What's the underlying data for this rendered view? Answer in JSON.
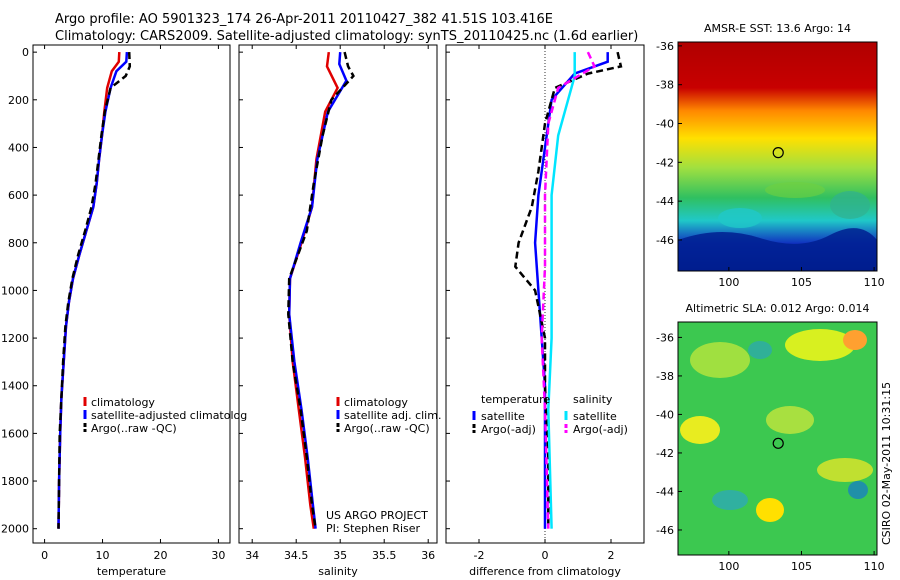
{
  "title": {
    "line1": "Argo profile: AO 5901323_174 26-Apr-2011 20110427_382 41.51S 103.416E",
    "line2": "Climatology: CARS2009. Satellite-adjusted climatology: synTS_20110425.nc (1.6d earlier)"
  },
  "side_stamp": "CSIRO 02-May-2011 10:31:15",
  "project": {
    "line1": "US ARGO PROJECT",
    "line2": "PI: Stephen Riser"
  },
  "colors": {
    "climatology": "#e00000",
    "satellite": "#0000ff",
    "argo": "#000000",
    "cyan": "#00e5ff",
    "magenta": "#ff00ff"
  },
  "chart_data": [
    {
      "type": "line",
      "xlabel": "temperature",
      "ylabel": "",
      "xlim": [
        -2,
        32
      ],
      "ylim": [
        2060,
        -30
      ],
      "xticks": [
        0,
        10,
        20,
        30
      ],
      "yticks": [
        0,
        200,
        400,
        600,
        800,
        1000,
        1200,
        1400,
        1600,
        1800,
        2000
      ],
      "legend": [
        "climatology",
        "satellite-adjusted climatolog",
        "Argo(..raw -QC)"
      ],
      "series": [
        {
          "name": "climatology",
          "color": "#e00000",
          "style": "solid",
          "points": [
            [
              12.9,
              0
            ],
            [
              12.8,
              40
            ],
            [
              11.6,
              80
            ],
            [
              10.8,
              150
            ],
            [
              10.3,
              250
            ],
            [
              9.9,
              350
            ],
            [
              9.4,
              450
            ],
            [
              9.0,
              550
            ],
            [
              8.4,
              650
            ],
            [
              7.2,
              750
            ],
            [
              6.0,
              850
            ],
            [
              4.9,
              950
            ],
            [
              4.2,
              1050
            ],
            [
              3.7,
              1150
            ],
            [
              3.3,
              1300
            ],
            [
              2.9,
              1450
            ],
            [
              2.7,
              1600
            ],
            [
              2.5,
              1800
            ],
            [
              2.4,
              2000
            ]
          ]
        },
        {
          "name": "satellite-adjusted climatolog",
          "color": "#0000ff",
          "style": "solid",
          "points": [
            [
              14.2,
              0
            ],
            [
              14.1,
              40
            ],
            [
              12.4,
              80
            ],
            [
              11.4,
              150
            ],
            [
              10.5,
              250
            ],
            [
              9.9,
              350
            ],
            [
              9.4,
              450
            ],
            [
              9.0,
              550
            ],
            [
              8.4,
              650
            ],
            [
              7.2,
              750
            ],
            [
              6.0,
              850
            ],
            [
              4.9,
              950
            ],
            [
              4.2,
              1050
            ],
            [
              3.7,
              1150
            ],
            [
              3.3,
              1300
            ],
            [
              2.9,
              1450
            ],
            [
              2.7,
              1600
            ],
            [
              2.5,
              1800
            ],
            [
              2.4,
              2000
            ]
          ]
        },
        {
          "name": "Argo(..raw -QC)",
          "color": "#000000",
          "style": "dashed",
          "points": [
            [
              14.6,
              0
            ],
            [
              14.7,
              60
            ],
            [
              14.0,
              100
            ],
            [
              11.4,
              150
            ],
            [
              10.4,
              250
            ],
            [
              9.8,
              350
            ],
            [
              9.3,
              450
            ],
            [
              8.8,
              550
            ],
            [
              8.1,
              650
            ],
            [
              7.0,
              750
            ],
            [
              5.8,
              850
            ],
            [
              4.8,
              950
            ],
            [
              4.1,
              1050
            ],
            [
              3.6,
              1150
            ],
            [
              3.2,
              1300
            ],
            [
              2.9,
              1450
            ],
            [
              2.6,
              1600
            ],
            [
              2.5,
              1800
            ],
            [
              2.4,
              2000
            ]
          ]
        }
      ]
    },
    {
      "type": "line",
      "xlabel": "salinity",
      "xlim": [
        33.85,
        36.1
      ],
      "ylim": [
        2060,
        -30
      ],
      "xticks": [
        34,
        34.5,
        35,
        35.5,
        36
      ],
      "legend": [
        "climatology",
        "satellite adj. clim.",
        "Argo(..raw -QC)"
      ],
      "series": [
        {
          "name": "climatology",
          "color": "#e00000",
          "style": "solid",
          "points": [
            [
              34.87,
              0
            ],
            [
              34.85,
              60
            ],
            [
              34.97,
              150
            ],
            [
              34.83,
              250
            ],
            [
              34.73,
              450
            ],
            [
              34.68,
              650
            ],
            [
              34.56,
              800
            ],
            [
              34.43,
              950
            ],
            [
              34.42,
              1100
            ],
            [
              34.46,
              1300
            ],
            [
              34.53,
              1500
            ],
            [
              34.6,
              1700
            ],
            [
              34.66,
              1900
            ],
            [
              34.7,
              2000
            ]
          ]
        },
        {
          "name": "satellite adj. clim.",
          "color": "#0000ff",
          "style": "solid",
          "points": [
            [
              35.0,
              0
            ],
            [
              34.99,
              50
            ],
            [
              35.07,
              120
            ],
            [
              34.86,
              250
            ],
            [
              34.74,
              450
            ],
            [
              34.68,
              650
            ],
            [
              34.55,
              800
            ],
            [
              34.43,
              950
            ],
            [
              34.42,
              1100
            ],
            [
              34.48,
              1300
            ],
            [
              34.56,
              1500
            ],
            [
              34.63,
              1700
            ],
            [
              34.69,
              1900
            ],
            [
              34.72,
              2000
            ]
          ]
        },
        {
          "name": "Argo(..raw -QC)",
          "color": "#000000",
          "style": "dashed",
          "points": [
            [
              35.05,
              0
            ],
            [
              35.09,
              60
            ],
            [
              35.15,
              100
            ],
            [
              34.9,
              200
            ],
            [
              34.8,
              350
            ],
            [
              34.7,
              550
            ],
            [
              34.62,
              750
            ],
            [
              34.52,
              850
            ],
            [
              34.42,
              950
            ],
            [
              34.41,
              1100
            ],
            [
              34.46,
              1300
            ],
            [
              34.55,
              1500
            ],
            [
              34.62,
              1700
            ],
            [
              34.68,
              1900
            ],
            [
              34.72,
              2000
            ]
          ]
        }
      ]
    },
    {
      "type": "line",
      "xlabel": "difference from climatology",
      "xlim": [
        -3,
        3
      ],
      "ylim": [
        2060,
        -30
      ],
      "xticks": [
        -2,
        0,
        2
      ],
      "legend_groups": [
        {
          "title": "temperature",
          "items": [
            "satellite",
            "Argo(-adj)"
          ]
        },
        {
          "title": "salinity",
          "items": [
            "satellite",
            "Argo(-adj)"
          ]
        }
      ],
      "series": [
        {
          "name": "satellite",
          "group": "temperature",
          "color": "#0000ff",
          "style": "solid",
          "points": [
            [
              1.9,
              0
            ],
            [
              1.9,
              40
            ],
            [
              0.9,
              90
            ],
            [
              0.2,
              200
            ],
            [
              0.0,
              400
            ],
            [
              -0.2,
              600
            ],
            [
              -0.3,
              800
            ],
            [
              -0.2,
              1000
            ],
            [
              -0.1,
              1200
            ],
            [
              0.0,
              1400
            ],
            [
              0.0,
              1700
            ],
            [
              0.0,
              2000
            ]
          ]
        },
        {
          "name": "Argo(-adj)",
          "group": "temperature",
          "color": "#000000",
          "style": "dashed",
          "points": [
            [
              2.2,
              0
            ],
            [
              2.3,
              60
            ],
            [
              1.3,
              90
            ],
            [
              0.3,
              150
            ],
            [
              0.0,
              300
            ],
            [
              -0.2,
              500
            ],
            [
              -0.4,
              650
            ],
            [
              -0.8,
              800
            ],
            [
              -0.9,
              900
            ],
            [
              -0.3,
              1000
            ],
            [
              0.0,
              1200
            ],
            [
              0.0,
              1400
            ],
            [
              0.1,
              1700
            ],
            [
              0.1,
              2000
            ]
          ]
        },
        {
          "name": "satellite",
          "group": "salinity",
          "color": "#00e5ff",
          "style": "solid",
          "points": [
            [
              0.9,
              0
            ],
            [
              0.9,
              100
            ],
            [
              0.7,
              200
            ],
            [
              0.4,
              350
            ],
            [
              0.2,
              600
            ],
            [
              0.2,
              900
            ],
            [
              0.2,
              1200
            ],
            [
              0.1,
              1500
            ],
            [
              0.2,
              2000
            ]
          ]
        },
        {
          "name": "Argo(-adj)",
          "group": "salinity",
          "color": "#ff00ff",
          "style": "dashed",
          "points": [
            [
              1.3,
              0
            ],
            [
              1.5,
              60
            ],
            [
              0.4,
              150
            ],
            [
              0.1,
              300
            ],
            [
              0.0,
              600
            ],
            [
              0.0,
              900
            ],
            [
              -0.1,
              1200
            ],
            [
              0.0,
              1500
            ],
            [
              0.1,
              2000
            ]
          ]
        }
      ]
    },
    {
      "type": "heatmap",
      "title": "AMSR-E SST: 13.6 Argo: 14",
      "xticks": [
        100,
        105,
        110
      ],
      "yticks": [
        -36,
        -38,
        -40,
        -42,
        -44,
        -46
      ],
      "xlim": [
        96.5,
        110.2
      ],
      "ylim": [
        -47.6,
        -35.8
      ],
      "marker": [
        103.4,
        -41.5
      ]
    },
    {
      "type": "heatmap",
      "title": "Altimetric SLA: 0.012 Argo: 0.014",
      "xticks": [
        100,
        105,
        110
      ],
      "yticks": [
        -36,
        -38,
        -40,
        -42,
        -44,
        -46
      ],
      "xlim": [
        96.5,
        110.2
      ],
      "ylim": [
        -47.3,
        -35.2
      ],
      "marker": [
        103.4,
        -41.5
      ]
    }
  ]
}
